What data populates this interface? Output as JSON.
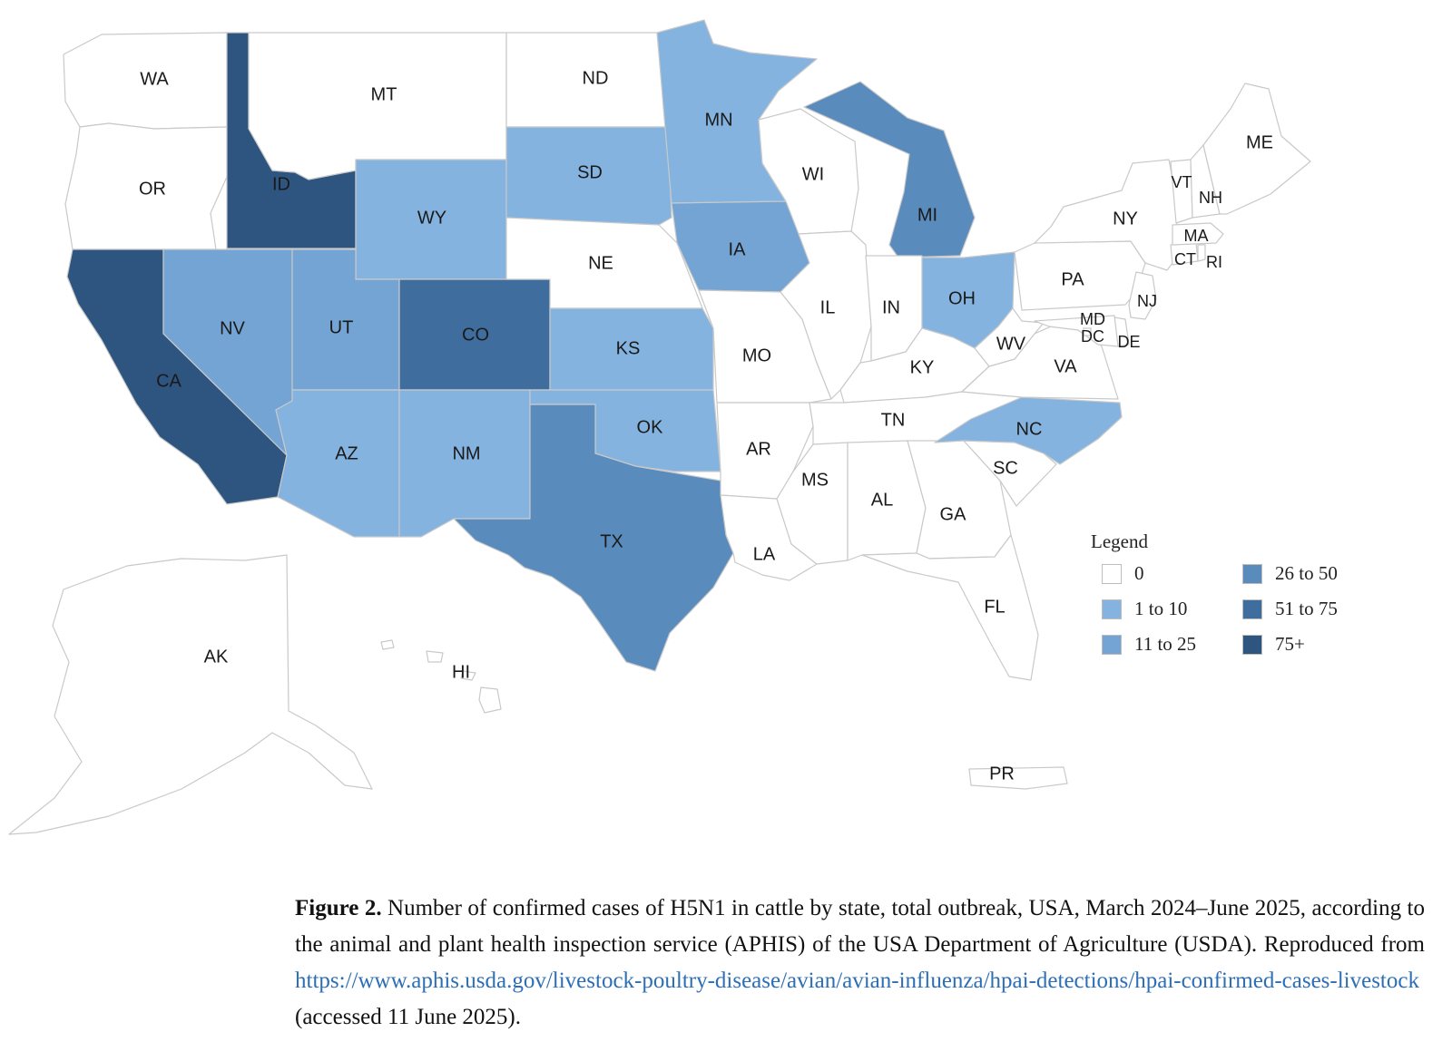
{
  "colors": {
    "c0": "#ffffff",
    "c1_10": "#84b3df",
    "c11_25": "#74a4d3",
    "c26_50": "#5a8bbd",
    "c51_75": "#3f6d9e",
    "c75p": "#2d5580"
  },
  "states": [
    {
      "code": "WA",
      "bin": "c0"
    },
    {
      "code": "OR",
      "bin": "c0"
    },
    {
      "code": "CA",
      "bin": "c75p"
    },
    {
      "code": "ID",
      "bin": "c75p"
    },
    {
      "code": "NV",
      "bin": "c11_25"
    },
    {
      "code": "MT",
      "bin": "c0"
    },
    {
      "code": "WY",
      "bin": "c1_10"
    },
    {
      "code": "UT",
      "bin": "c11_25"
    },
    {
      "code": "AZ",
      "bin": "c1_10"
    },
    {
      "code": "CO",
      "bin": "c51_75"
    },
    {
      "code": "NM",
      "bin": "c1_10"
    },
    {
      "code": "ND",
      "bin": "c0"
    },
    {
      "code": "SD",
      "bin": "c1_10"
    },
    {
      "code": "NE",
      "bin": "c0"
    },
    {
      "code": "KS",
      "bin": "c1_10"
    },
    {
      "code": "OK",
      "bin": "c1_10"
    },
    {
      "code": "TX",
      "bin": "c26_50"
    },
    {
      "code": "MN",
      "bin": "c1_10"
    },
    {
      "code": "IA",
      "bin": "c11_25"
    },
    {
      "code": "MO",
      "bin": "c0"
    },
    {
      "code": "AR",
      "bin": "c0"
    },
    {
      "code": "LA",
      "bin": "c0"
    },
    {
      "code": "WI",
      "bin": "c0"
    },
    {
      "code": "IL",
      "bin": "c0"
    },
    {
      "code": "MI",
      "bin": "c26_50"
    },
    {
      "code": "IN",
      "bin": "c0"
    },
    {
      "code": "OH",
      "bin": "c1_10"
    },
    {
      "code": "KY",
      "bin": "c0"
    },
    {
      "code": "TN",
      "bin": "c0"
    },
    {
      "code": "MS",
      "bin": "c0"
    },
    {
      "code": "AL",
      "bin": "c0"
    },
    {
      "code": "GA",
      "bin": "c0"
    },
    {
      "code": "FL",
      "bin": "c0"
    },
    {
      "code": "SC",
      "bin": "c0"
    },
    {
      "code": "NC",
      "bin": "c1_10"
    },
    {
      "code": "VA",
      "bin": "c0"
    },
    {
      "code": "WV",
      "bin": "c0"
    },
    {
      "code": "PA",
      "bin": "c0"
    },
    {
      "code": "NY",
      "bin": "c0"
    },
    {
      "code": "NJ",
      "bin": "c0"
    },
    {
      "code": "DE",
      "bin": "c0"
    },
    {
      "code": "MD",
      "bin": "c0"
    },
    {
      "code": "DC",
      "bin": "c0"
    },
    {
      "code": "CT",
      "bin": "c0"
    },
    {
      "code": "RI",
      "bin": "c0"
    },
    {
      "code": "MA",
      "bin": "c0"
    },
    {
      "code": "VT",
      "bin": "c0"
    },
    {
      "code": "NH",
      "bin": "c0"
    },
    {
      "code": "ME",
      "bin": "c0"
    },
    {
      "code": "AK",
      "bin": "c0"
    },
    {
      "code": "HI",
      "bin": "c0"
    },
    {
      "code": "PR",
      "bin": "c0"
    }
  ],
  "legend": {
    "title": "Legend",
    "items": [
      {
        "label": "0",
        "bin": "c0"
      },
      {
        "label": "1 to 10",
        "bin": "c1_10"
      },
      {
        "label": "11 to 25",
        "bin": "c11_25"
      },
      {
        "label": "26 to 50",
        "bin": "c26_50"
      },
      {
        "label": "51 to 75",
        "bin": "c51_75"
      },
      {
        "label": "75+",
        "bin": "c75p"
      }
    ]
  },
  "caption": {
    "figure_label": "Figure 2.",
    "text": " Number of confirmed cases of H5N1 in cattle by state, total outbreak, USA, March 2024–June 2025, according to the animal and plant health inspection service (APHIS) of the USA Department of Agriculture (USDA). Reproduced from ",
    "link_text": "https://www.aphis.usda.gov/livestock-poultry-disease/avian/avian-influenza/hpai-detections/hpai-confirmed-cases-livestock",
    "accessed": " (accessed 11 June 2025)."
  }
}
